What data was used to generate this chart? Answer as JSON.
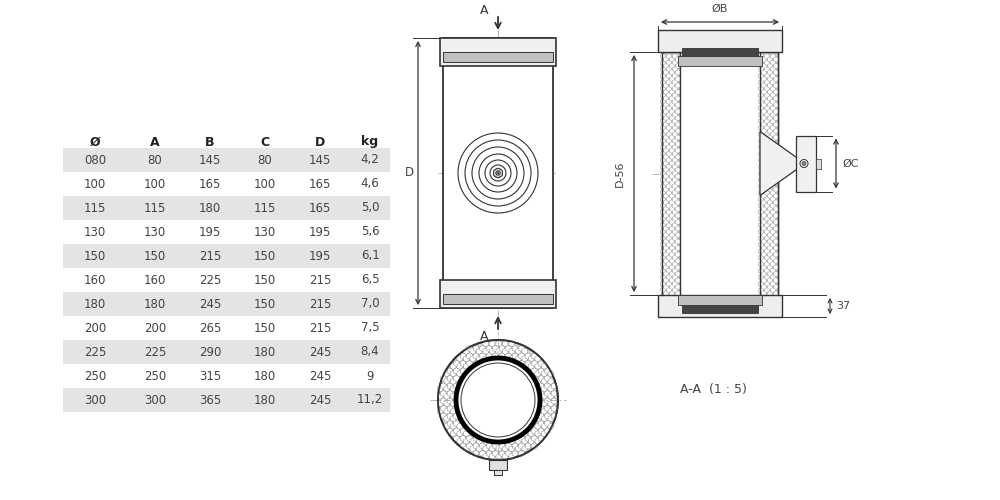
{
  "table_headers": [
    "Ø",
    "A",
    "B",
    "C",
    "D",
    "kg"
  ],
  "table_data": [
    [
      "080",
      "80",
      "145",
      "80",
      "145",
      "4,2"
    ],
    [
      "100",
      "100",
      "165",
      "100",
      "165",
      "4,6"
    ],
    [
      "115",
      "115",
      "180",
      "115",
      "165",
      "5,0"
    ],
    [
      "130",
      "130",
      "195",
      "130",
      "195",
      "5,6"
    ],
    [
      "150",
      "150",
      "215",
      "150",
      "195",
      "6,1"
    ],
    [
      "160",
      "160",
      "225",
      "150",
      "215",
      "6,5"
    ],
    [
      "180",
      "180",
      "245",
      "150",
      "215",
      "7,0"
    ],
    [
      "200",
      "200",
      "265",
      "150",
      "215",
      "7,5"
    ],
    [
      "225",
      "225",
      "290",
      "180",
      "245",
      "8,4"
    ],
    [
      "250",
      "250",
      "315",
      "180",
      "245",
      "9"
    ],
    [
      "300",
      "300",
      "365",
      "180",
      "245",
      "11,2"
    ]
  ],
  "shaded_rows": [
    0,
    2,
    4,
    6,
    8,
    10
  ],
  "bg_color": "#ffffff",
  "shade_color": "#e4e4e4",
  "text_color": "#444444",
  "header_color": "#222222",
  "line_color": "#333333",
  "dim_color": "#444444",
  "aa_label": "A-A  (1 : 5)"
}
